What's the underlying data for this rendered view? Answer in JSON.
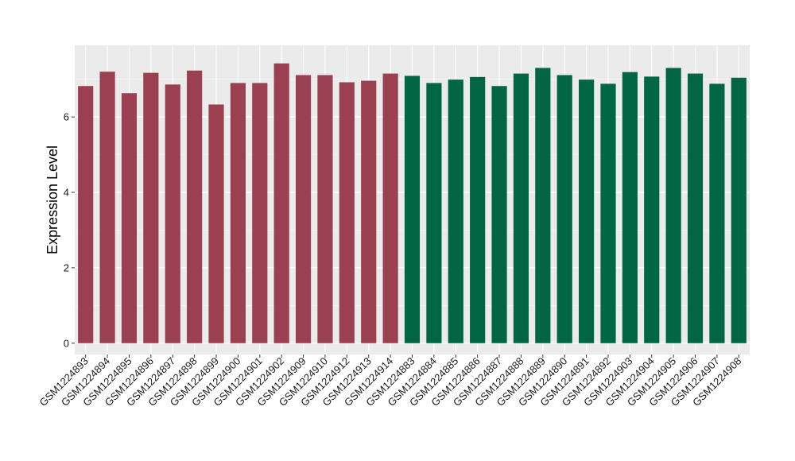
{
  "chart_data": {
    "type": "bar",
    "title": "",
    "xlabel": "",
    "ylabel": "Expression Level",
    "ylim": [
      -0.3,
      7.9
    ],
    "yticks": [
      0,
      2,
      4,
      6
    ],
    "grid": true,
    "legend": "none",
    "panel_background": "#EBEBEB",
    "categories": [
      "GSM1224893",
      "GSM1224894",
      "GSM1224895",
      "GSM1224896",
      "GSM1224897",
      "GSM1224898",
      "GSM1224899",
      "GSM1224900",
      "GSM1224901",
      "GSM1224902",
      "GSM1224909",
      "GSM1224910",
      "GSM1224912",
      "GSM1224913",
      "GSM1224914",
      "GSM1224883",
      "GSM1224884",
      "GSM1224885",
      "GSM1224886",
      "GSM1224887",
      "GSM1224888",
      "GSM1224889",
      "GSM1224890",
      "GSM1224891",
      "GSM1224892",
      "GSM1224903",
      "GSM1224904",
      "GSM1224905",
      "GSM1224906",
      "GSM1224907",
      "GSM1224908"
    ],
    "values": [
      6.82,
      7.2,
      6.63,
      7.17,
      6.86,
      7.23,
      6.33,
      6.9,
      6.9,
      7.42,
      7.11,
      7.11,
      6.92,
      6.96,
      7.15,
      7.09,
      6.9,
      6.99,
      7.06,
      6.82,
      7.15,
      7.3,
      7.11,
      6.99,
      6.88,
      7.19,
      7.07,
      7.3,
      7.15,
      6.88,
      7.04
    ],
    "bar_colors": [
      "#9B4050",
      "#9B4050",
      "#9B4050",
      "#9B4050",
      "#9B4050",
      "#9B4050",
      "#9B4050",
      "#9B4050",
      "#9B4050",
      "#9B4050",
      "#9B4050",
      "#9B4050",
      "#9B4050",
      "#9B4050",
      "#9B4050",
      "#006644",
      "#006644",
      "#006644",
      "#006644",
      "#006644",
      "#006644",
      "#006644",
      "#006644",
      "#006644",
      "#006644",
      "#006644",
      "#006644",
      "#006644",
      "#006644",
      "#006644",
      "#006644"
    ]
  }
}
